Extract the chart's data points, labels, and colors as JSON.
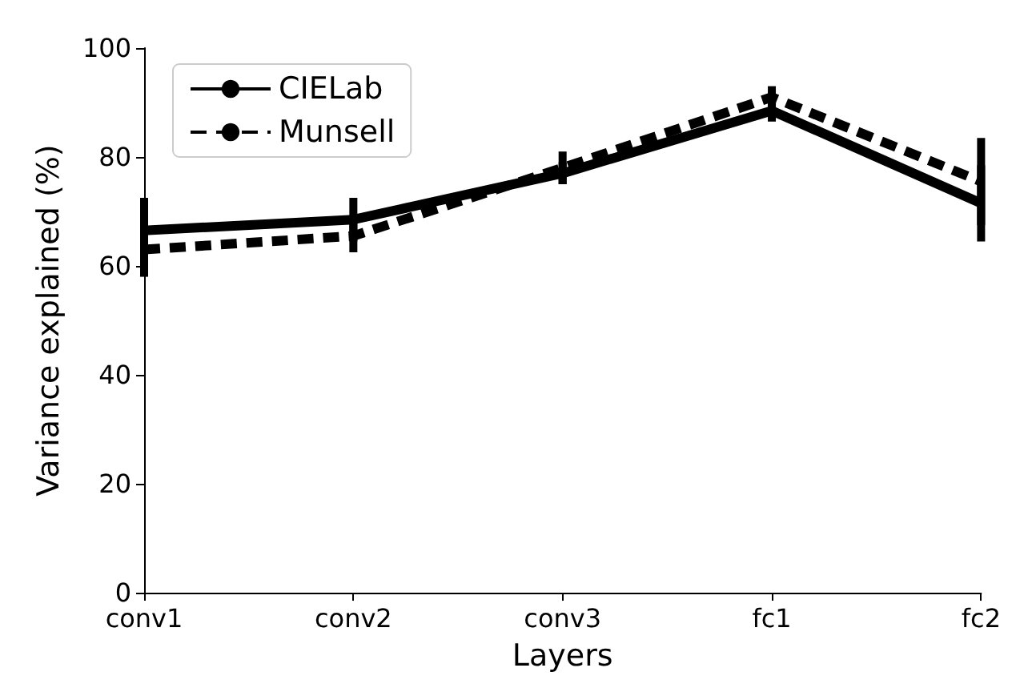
{
  "chart_data": {
    "type": "line",
    "xlabel": "Layers",
    "ylabel": "Variance explained (%)",
    "categories": [
      "conv1",
      "conv2",
      "conv3",
      "fc1",
      "fc2"
    ],
    "series": [
      {
        "name": "CIELab",
        "color": "#000000",
        "line_style": "solid",
        "values": [
          66.5,
          68.5,
          77,
          88.5,
          71.5
        ],
        "errors": [
          6,
          4,
          2,
          2,
          7
        ]
      },
      {
        "name": "Munsell",
        "color": "#000000",
        "line_style": "dashed",
        "values": [
          63,
          65.5,
          78,
          91,
          75.5
        ],
        "errors": [
          5,
          3,
          3,
          2,
          8
        ]
      }
    ],
    "ylim": [
      0,
      100
    ],
    "yticks": [
      0,
      20,
      40,
      60,
      80,
      100
    ],
    "grid": false,
    "legend": "top left",
    "marker": "none"
  }
}
